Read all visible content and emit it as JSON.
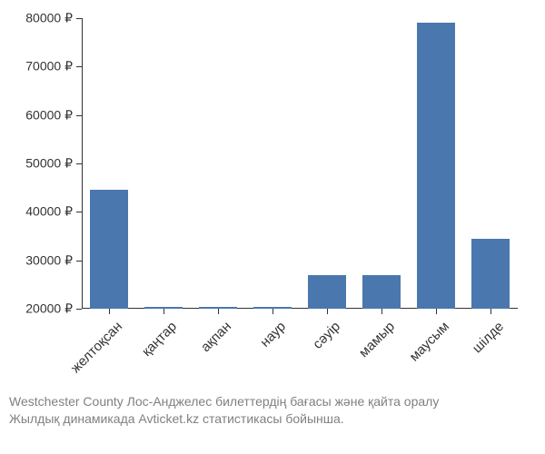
{
  "chart": {
    "type": "bar",
    "categories": [
      "желтоқсан",
      "қаңтар",
      "ақпан",
      "наур",
      "сәуір",
      "мамыр",
      "маусым",
      "шілде"
    ],
    "values": [
      44500,
      20300,
      20300,
      20300,
      27000,
      27000,
      79000,
      34500
    ],
    "bar_color": "#4a77ae",
    "background_color": "#ffffff",
    "axis_color": "#333333",
    "ylim": [
      20000,
      80000
    ],
    "ytick_step": 10000,
    "ytick_labels": [
      "20000 ₽",
      "30000 ₽",
      "40000 ₽",
      "50000 ₽",
      "60000 ₽",
      "70000 ₽",
      "80000 ₽"
    ],
    "ytick_values": [
      20000,
      30000,
      40000,
      50000,
      60000,
      70000,
      80000
    ],
    "bar_width_ratio": 0.7,
    "label_fontsize": 15,
    "tick_fontsize": 14,
    "x_label_rotation": -45
  },
  "caption": {
    "line1": "Westchester County Лос-Анджелес билеттердің бағасы және қайта оралу",
    "line2": "Жылдық динамикада Avticket.kz статистикасы бойынша.",
    "color": "#808080",
    "fontsize": 14
  }
}
